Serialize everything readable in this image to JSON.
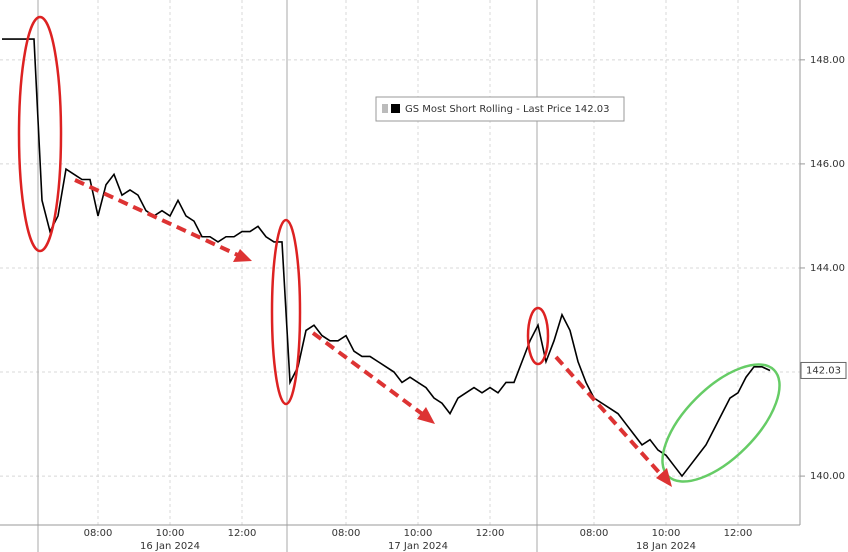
{
  "chart_data": {
    "type": "line",
    "categories": [
      null,
      null,
      null,
      null,
      null,
      null,
      null,
      null,
      null,
      null,
      null,
      null,
      "08:00",
      null,
      null,
      null,
      null,
      null,
      null,
      null,
      null,
      "10:00",
      null,
      null,
      null,
      null,
      null,
      null,
      null,
      null,
      "12:00",
      null,
      null,
      null,
      null,
      null,
      null,
      null,
      null,
      null,
      null,
      null,
      null,
      "08:00",
      null,
      null,
      null,
      null,
      null,
      null,
      null,
      null,
      "10:00",
      null,
      null,
      null,
      null,
      null,
      null,
      null,
      null,
      "12:00",
      null,
      null,
      null,
      null,
      null,
      null,
      null,
      null,
      null,
      null,
      null,
      null,
      "08:00",
      null,
      null,
      null,
      null,
      null,
      null,
      null,
      null,
      "10:00",
      null,
      null,
      null,
      null,
      null,
      null,
      null,
      null,
      "12:00",
      null,
      null,
      null,
      null
    ],
    "x_groups": [
      "16 Jan 2024",
      "17 Jan 2024",
      "18 Jan 2024"
    ],
    "series": [
      {
        "name": "GS Most Short Rolling - Last Price 142.03",
        "color": "#000000",
        "values": [
          148.4,
          148.4,
          148.4,
          148.4,
          148.4,
          145.3,
          144.7,
          145.0,
          145.9,
          145.8,
          145.7,
          145.7,
          145.0,
          145.6,
          145.8,
          145.4,
          145.5,
          145.4,
          145.1,
          145.0,
          145.1,
          145.0,
          145.3,
          145.0,
          144.9,
          144.6,
          144.6,
          144.5,
          144.6,
          144.6,
          144.7,
          144.7,
          144.8,
          144.6,
          144.5,
          144.5,
          141.8,
          142.1,
          142.8,
          142.9,
          142.7,
          142.6,
          142.6,
          142.7,
          142.4,
          142.3,
          142.3,
          142.2,
          142.1,
          142.0,
          141.8,
          141.9,
          141.8,
          141.7,
          141.5,
          141.4,
          141.2,
          141.5,
          141.6,
          141.7,
          141.6,
          141.7,
          141.6,
          141.8,
          141.8,
          142.2,
          142.6,
          142.9,
          142.2,
          142.6,
          143.1,
          142.8,
          142.2,
          141.8,
          141.5,
          141.4,
          141.3,
          141.2,
          141.0,
          140.8,
          140.6,
          140.7,
          140.5,
          140.4,
          140.2,
          140.0,
          140.2,
          140.4,
          140.6,
          140.9,
          141.2,
          141.5,
          141.6,
          141.9,
          142.1,
          142.1,
          142.03
        ]
      }
    ],
    "ylim": [
      139.06,
      149.15
    ],
    "yticks": [
      {
        "value": 140,
        "label": "140.00"
      },
      {
        "value": 142,
        "label": "142.00"
      },
      {
        "value": 144,
        "label": "144.00"
      },
      {
        "value": 146,
        "label": "146.00"
      },
      {
        "value": 148,
        "label": "148.00"
      }
    ],
    "grid": true
  }
}
